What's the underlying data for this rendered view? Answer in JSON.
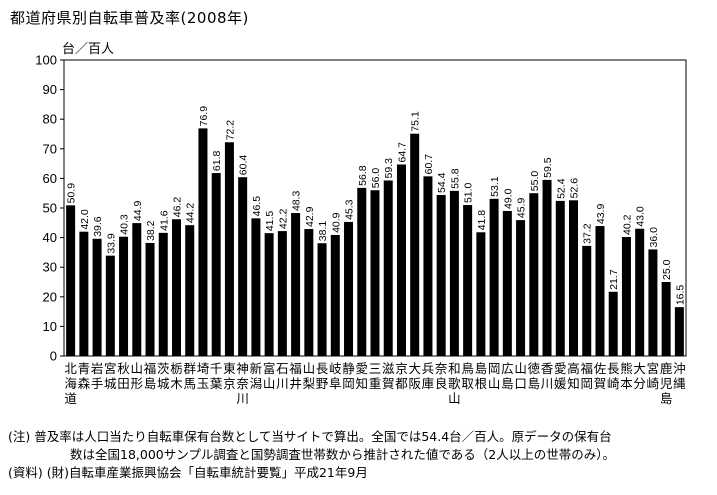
{
  "title": "都道府県別自転車普及率(2008年)",
  "unit_label": "台／百人",
  "notes": {
    "line1": "(注) 普及率は人口当たり自転車保有台数として当サイトで算出。全国では54.4台／百人。原データの保有台",
    "line2": "数は全国18,000サンプル調査と国勢調査世帯数から推計された値である（2人以上の世帯のみ）。",
    "line3": "(資料) (財)自転車産業振興協会「自転車統計要覧」平成21年9月"
  },
  "chart_data": {
    "type": "bar",
    "title": "都道府県別自転車普及率(2008年)",
    "ylabel": "台／百人",
    "ylim": [
      0,
      100
    ],
    "yticks": [
      0,
      10,
      20,
      30,
      40,
      50,
      60,
      70,
      80,
      90,
      100
    ],
    "grid": false,
    "bar_color": "#000000",
    "categories": [
      "北海道",
      "青森",
      "岩手",
      "宮城",
      "秋田",
      "山形",
      "福島",
      "茨城",
      "栃木",
      "群馬",
      "埼玉",
      "千葉",
      "東京",
      "神奈川",
      "新潟",
      "富山",
      "石川",
      "福井",
      "山梨",
      "長野",
      "岐阜",
      "静岡",
      "愛知",
      "三重",
      "滋賀",
      "京都",
      "大阪",
      "兵庫",
      "奈良",
      "和歌山",
      "鳥取",
      "島根",
      "岡山",
      "広島",
      "山口",
      "徳島",
      "香川",
      "愛媛",
      "高知",
      "福岡",
      "佐賀",
      "長崎",
      "熊本",
      "大分",
      "宮崎",
      "鹿児島",
      "沖縄"
    ],
    "values": [
      50.9,
      42.0,
      39.6,
      33.9,
      40.3,
      44.9,
      38.2,
      41.6,
      46.2,
      44.2,
      76.9,
      61.8,
      72.2,
      60.4,
      46.5,
      41.5,
      42.2,
      48.3,
      42.9,
      38.1,
      40.9,
      45.3,
      56.8,
      56.0,
      59.3,
      64.7,
      75.1,
      60.7,
      54.4,
      55.8,
      51.0,
      41.8,
      53.1,
      49.0,
      45.9,
      55.0,
      59.5,
      52.4,
      52.6,
      37.2,
      43.9,
      21.7,
      40.2,
      43.0,
      36.0,
      25.0,
      16.5
    ],
    "value_labels": [
      "50.9",
      "42.0",
      "39.6",
      "33.9",
      "40.3",
      "44.9",
      "38.2",
      "41.6",
      "46.2",
      "44.2",
      "76.9",
      "61.8",
      "72.2",
      "60.4",
      "46.5",
      "41.5",
      "42.2",
      "48.3",
      "42.9",
      "38.1",
      "40.9",
      "45.3",
      "56.8",
      "56.0",
      "59.3",
      "64.7",
      "75.1",
      "60.7",
      "54.4",
      "55.8",
      "51.0",
      "41.8",
      "53.1",
      "49.0",
      "45.9",
      "55.0",
      "59.5",
      "52.4",
      "52.6",
      "37.2",
      "43.9",
      "21.7",
      "40.2",
      "43.0",
      "36.0",
      "25.0",
      "16.5"
    ]
  }
}
